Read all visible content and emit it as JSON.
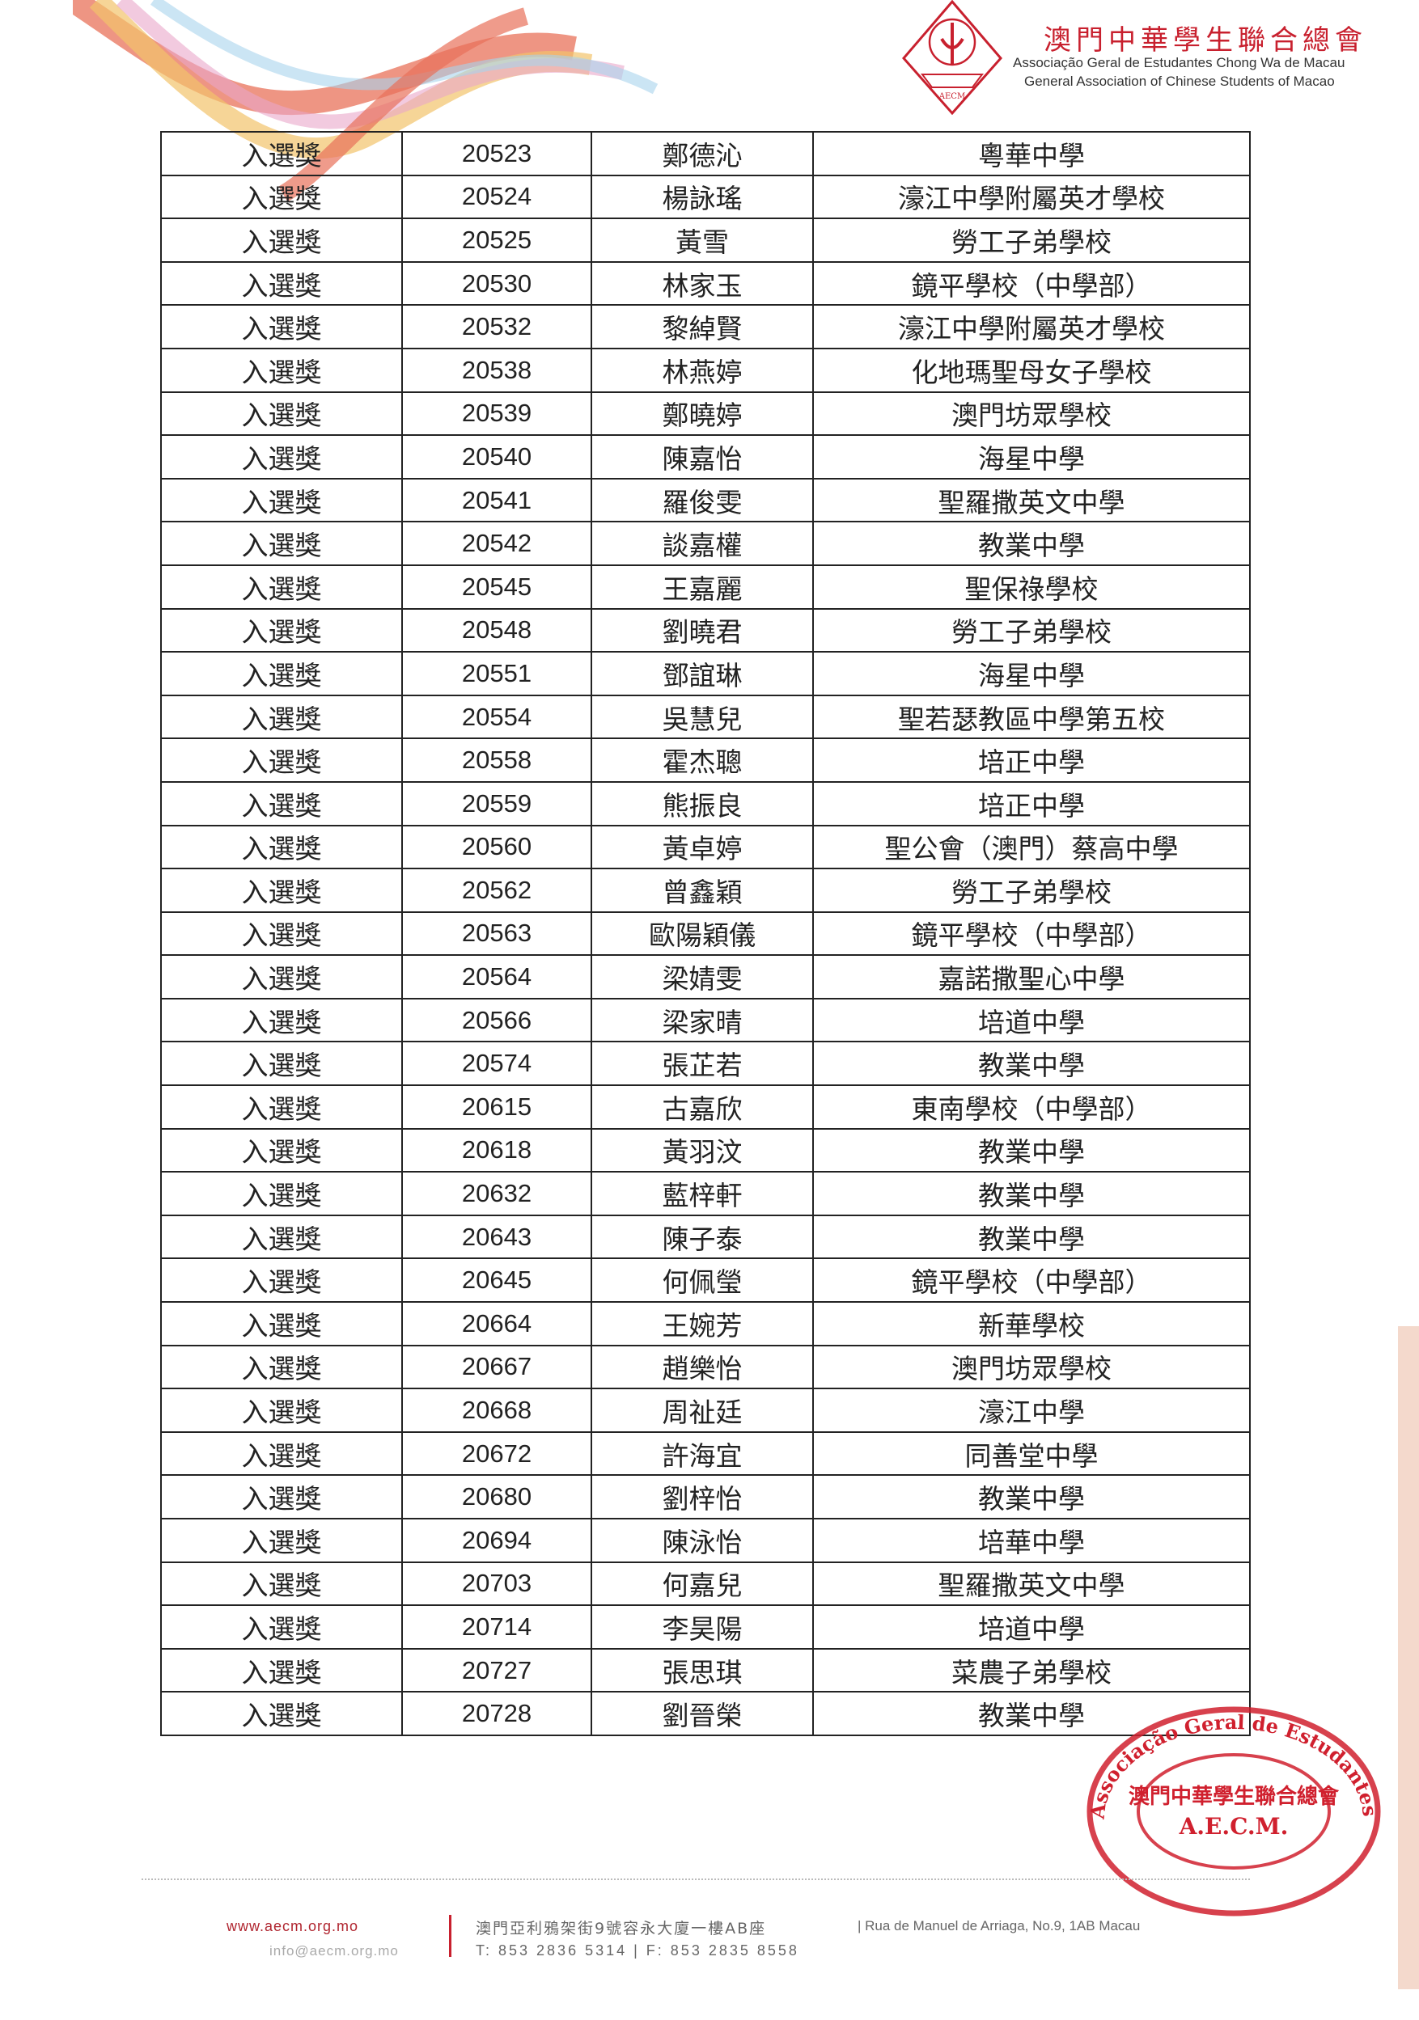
{
  "header": {
    "org_name_cn": "澳門中華學生聯合總會",
    "org_name_pt": "Associação Geral de Estudantes Chong Wa de Macau",
    "org_name_en": "General Association of Chinese Students of Macao",
    "logo_text": "AECM",
    "brand_color": "#c8202e"
  },
  "table": {
    "rows": [
      [
        "入選獎",
        "20523",
        "鄭德沁",
        "粵華中學"
      ],
      [
        "入選獎",
        "20524",
        "楊詠瑤",
        "濠江中學附屬英才學校"
      ],
      [
        "入選獎",
        "20525",
        "黃雪",
        "勞工子弟學校"
      ],
      [
        "入選獎",
        "20530",
        "林家玉",
        "鏡平學校（中學部）"
      ],
      [
        "入選獎",
        "20532",
        "黎綽賢",
        "濠江中學附屬英才學校"
      ],
      [
        "入選獎",
        "20538",
        "林燕婷",
        "化地瑪聖母女子學校"
      ],
      [
        "入選獎",
        "20539",
        "鄭曉婷",
        "澳門坊眾學校"
      ],
      [
        "入選獎",
        "20540",
        "陳嘉怡",
        "海星中學"
      ],
      [
        "入選獎",
        "20541",
        "羅俊雯",
        "聖羅撒英文中學"
      ],
      [
        "入選獎",
        "20542",
        "談嘉權",
        "教業中學"
      ],
      [
        "入選獎",
        "20545",
        "王嘉麗",
        "聖保祿學校"
      ],
      [
        "入選獎",
        "20548",
        "劉曉君",
        "勞工子弟學校"
      ],
      [
        "入選獎",
        "20551",
        "鄧誼琳",
        "海星中學"
      ],
      [
        "入選獎",
        "20554",
        "吳慧兒",
        "聖若瑟教區中學第五校"
      ],
      [
        "入選獎",
        "20558",
        "霍杰聰",
        "培正中學"
      ],
      [
        "入選獎",
        "20559",
        "熊振良",
        "培正中學"
      ],
      [
        "入選獎",
        "20560",
        "黃卓婷",
        "聖公會（澳門）蔡高中學"
      ],
      [
        "入選獎",
        "20562",
        "曾鑫穎",
        "勞工子弟學校"
      ],
      [
        "入選獎",
        "20563",
        "歐陽穎儀",
        "鏡平學校（中學部）"
      ],
      [
        "入選獎",
        "20564",
        "梁婧雯",
        "嘉諾撒聖心中學"
      ],
      [
        "入選獎",
        "20566",
        "梁家晴",
        "培道中學"
      ],
      [
        "入選獎",
        "20574",
        "張芷若",
        "教業中學"
      ],
      [
        "入選獎",
        "20615",
        "古嘉欣",
        "東南學校（中學部）"
      ],
      [
        "入選獎",
        "20618",
        "黃羽汶",
        "教業中學"
      ],
      [
        "入選獎",
        "20632",
        "藍梓軒",
        "教業中學"
      ],
      [
        "入選獎",
        "20643",
        "陳子泰",
        "教業中學"
      ],
      [
        "入選獎",
        "20645",
        "何佩瑩",
        "鏡平學校（中學部）"
      ],
      [
        "入選獎",
        "20664",
        "王婉芳",
        "新華學校"
      ],
      [
        "入選獎",
        "20667",
        "趙樂怡",
        "澳門坊眾學校"
      ],
      [
        "入選獎",
        "20668",
        "周祉廷",
        "濠江中學"
      ],
      [
        "入選獎",
        "20672",
        "許海宜",
        "同善堂中學"
      ],
      [
        "入選獎",
        "20680",
        "劉梓怡",
        "教業中學"
      ],
      [
        "入選獎",
        "20694",
        "陳泳怡",
        "培華中學"
      ],
      [
        "入選獎",
        "20703",
        "何嘉兒",
        "聖羅撒英文中學"
      ],
      [
        "入選獎",
        "20714",
        "李昊陽",
        "培道中學"
      ],
      [
        "入選獎",
        "20727",
        "張思琪",
        "菜農子弟學校"
      ],
      [
        "入選獎",
        "20728",
        "劉晉榮",
        "教業中學"
      ]
    ]
  },
  "stamp": {
    "outer_text": "Associação Geral de Estudantes Chong Wa de Macau",
    "inner_cn": "澳門中華學生聯合總會",
    "inner_abbr": "A.E.C.M.",
    "color": "#d0202e"
  },
  "footer": {
    "website": "www.aecm.org.mo",
    "email": "info@aecm.org.mo",
    "address_cn": "澳門亞利鴉架街9號容永大廈一樓AB座",
    "address_pt": "| Rua de Manuel de Arriaga, No.9, 1AB Macau",
    "phone_fax": "T: 853 2836 5314 | F: 853 2835 8558"
  }
}
